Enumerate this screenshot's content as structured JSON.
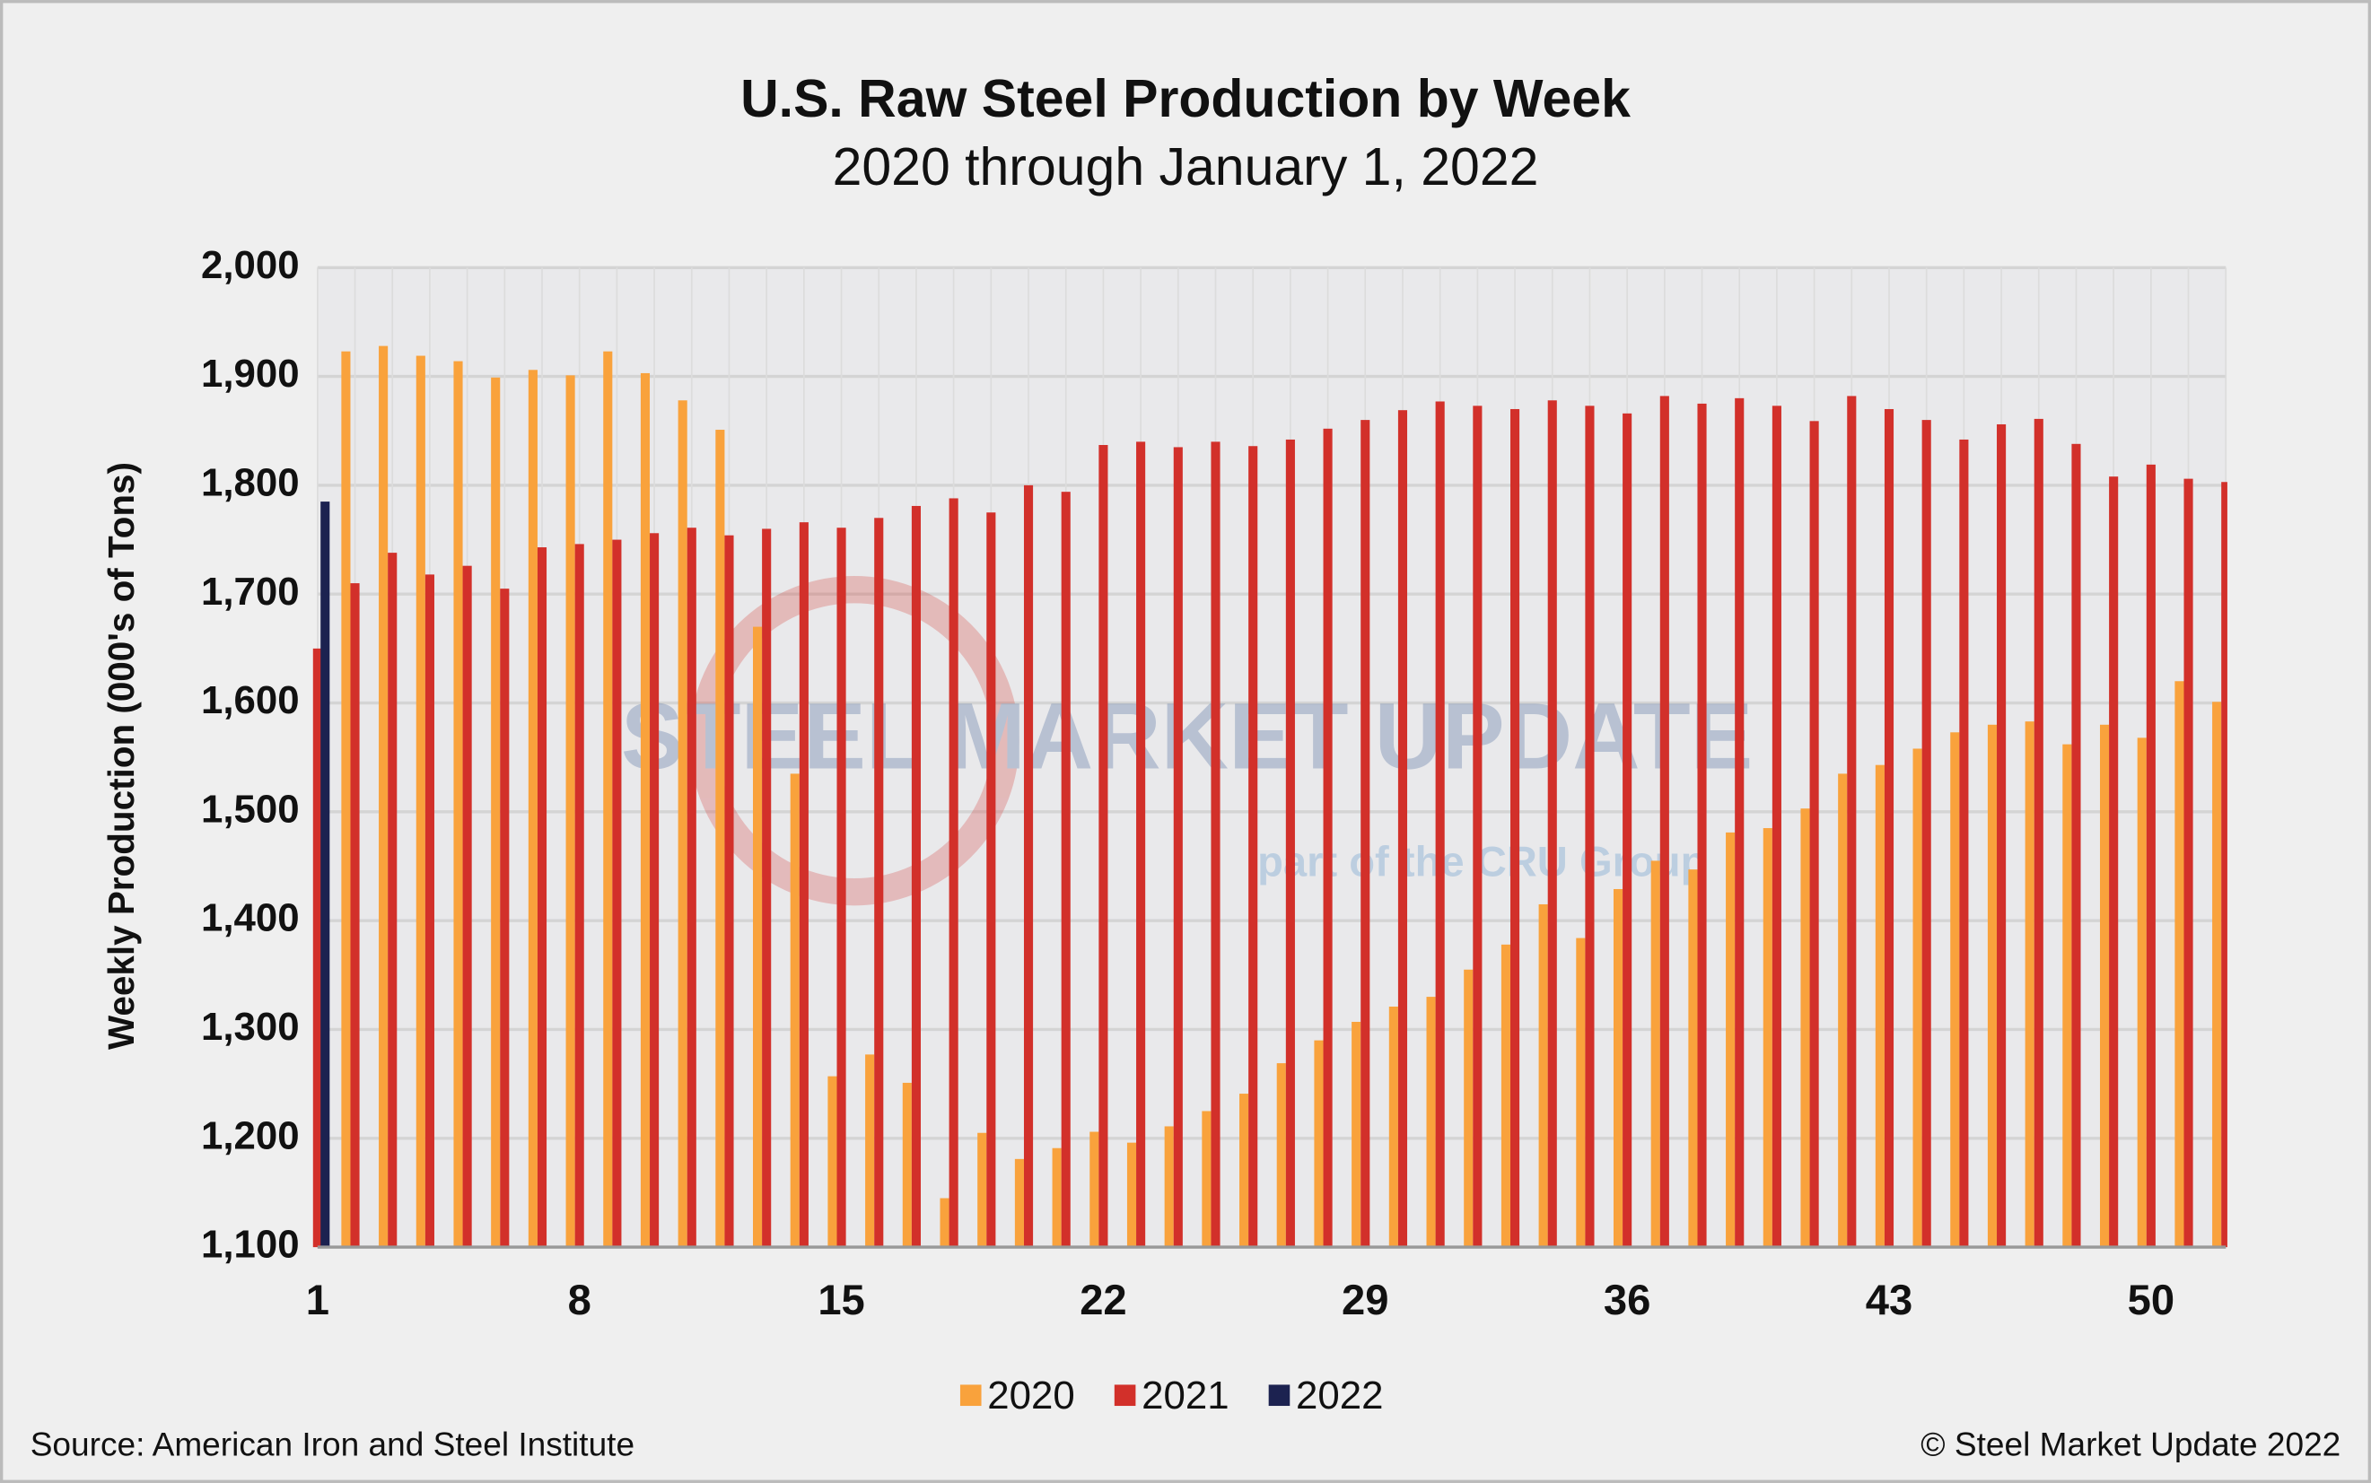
{
  "chart_data": {
    "type": "bar",
    "title": "U.S. Raw Steel Production by Week",
    "subtitle": "2020 through January 1, 2022",
    "y_label": "Weekly Production (000's of Tons)",
    "watermark": [
      "STEEL MARKET UPDATE",
      "part of the CRU Group"
    ],
    "source": "Source: American Iron and Steel Institute",
    "copyright": "© Steel Market Update 2022",
    "categories": [
      1,
      null,
      null,
      null,
      null,
      null,
      null,
      8,
      null,
      null,
      null,
      null,
      null,
      null,
      15,
      null,
      null,
      null,
      null,
      null,
      null,
      22,
      null,
      null,
      null,
      null,
      null,
      null,
      29,
      null,
      null,
      null,
      null,
      null,
      null,
      36,
      null,
      null,
      null,
      null,
      null,
      null,
      43,
      null,
      null,
      null,
      null,
      null,
      null,
      50,
      null,
      null
    ],
    "series": [
      {
        "name": "2020",
        "color": "#f9a23c",
        "values": [
          null,
          1923,
          1928,
          1919,
          1914,
          1899,
          1906,
          1901,
          1923,
          1903,
          1878,
          1851,
          1670,
          1535,
          1257,
          1277,
          1251,
          1145,
          1205,
          1181,
          1191,
          1206,
          1196,
          1211,
          1225,
          1241,
          1269,
          1290,
          1307,
          1321,
          1330,
          1355,
          1378,
          1415,
          1384,
          1429,
          1455,
          1447,
          1481,
          1485,
          1503,
          1535,
          1543,
          1558,
          1573,
          1580,
          1583,
          1562,
          1580,
          1568,
          1620,
          1601
        ]
      },
      {
        "name": "2021",
        "color": "#d2302a",
        "values": [
          1650,
          1710,
          1738,
          1718,
          1726,
          1705,
          1743,
          1746,
          1750,
          1756,
          1761,
          1754,
          1760,
          1766,
          1761,
          1770,
          1781,
          1788,
          1775,
          1800,
          1794,
          1837,
          1840,
          1835,
          1840,
          1836,
          1842,
          1852,
          1860,
          1869,
          1877,
          1873,
          1870,
          1878,
          1873,
          1866,
          1882,
          1875,
          1880,
          1873,
          1859,
          1882,
          1870,
          1860,
          1842,
          1856,
          1861,
          1838,
          1808,
          1819,
          1806,
          1803
        ]
      },
      {
        "name": "2022",
        "color": "#1c2250",
        "values": [
          1785,
          null,
          null,
          null,
          null,
          null,
          null,
          null,
          null,
          null,
          null,
          null,
          null,
          null,
          null,
          null,
          null,
          null,
          null,
          null,
          null,
          null,
          null,
          null,
          null,
          null,
          null,
          null,
          null,
          null,
          null,
          null,
          null,
          null,
          null,
          null,
          null,
          null,
          null,
          null,
          null,
          null,
          null,
          null,
          null,
          null,
          null,
          null,
          null,
          null,
          null,
          null
        ]
      }
    ],
    "ylim": [
      1100,
      2000
    ],
    "yticks": [
      {
        "value": 1100,
        "label": "1,100"
      },
      {
        "value": 1200,
        "label": "1,200"
      },
      {
        "value": 1300,
        "label": "1,300"
      },
      {
        "value": 1400,
        "label": "1,400"
      },
      {
        "value": 1500,
        "label": "1,500"
      },
      {
        "value": 1600,
        "label": "1,600"
      },
      {
        "value": 1700,
        "label": "1,700"
      },
      {
        "value": 1800,
        "label": "1,800"
      },
      {
        "value": 1900,
        "label": "1,900"
      },
      {
        "value": 2000,
        "label": "2,000"
      }
    ],
    "grid": true,
    "legend": "bottom"
  }
}
